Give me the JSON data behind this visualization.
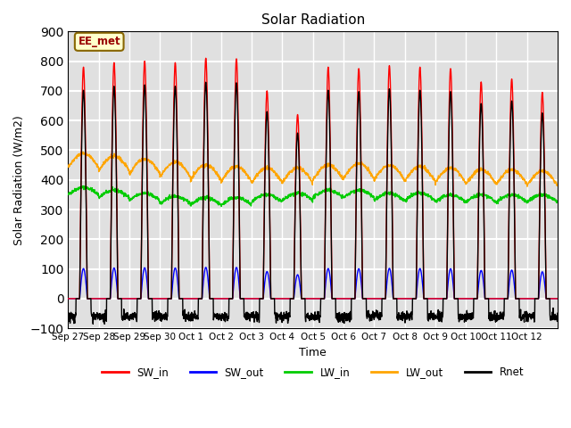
{
  "title": "Solar Radiation",
  "xlabel": "Time",
  "ylabel": "Solar Radiation (W/m2)",
  "ylim": [
    -100,
    900
  ],
  "yticks": [
    -100,
    0,
    100,
    200,
    300,
    400,
    500,
    600,
    700,
    800,
    900
  ],
  "colors": {
    "SW_in": "#ff0000",
    "SW_out": "#0000ff",
    "LW_in": "#00cc00",
    "LW_out": "#ffa500",
    "Rnet": "#000000"
  },
  "annotation_text": "EE_met",
  "annotation_bbox": {
    "facecolor": "#ffffcc",
    "edgecolor": "#886600"
  },
  "bg_color": "#e0e0e0",
  "grid_color": "#ffffff",
  "n_days": 16,
  "tick_labels": [
    "Sep 27",
    "Sep 28",
    "Sep 29",
    "Sep 30",
    "Oct 1",
    "Oct 2",
    "Oct 3",
    "Oct 4",
    "Oct 5",
    "Oct 6",
    "Oct 7",
    "Oct 8",
    "Oct 9",
    "Oct 10",
    "Oct 11",
    "Oct 12"
  ]
}
